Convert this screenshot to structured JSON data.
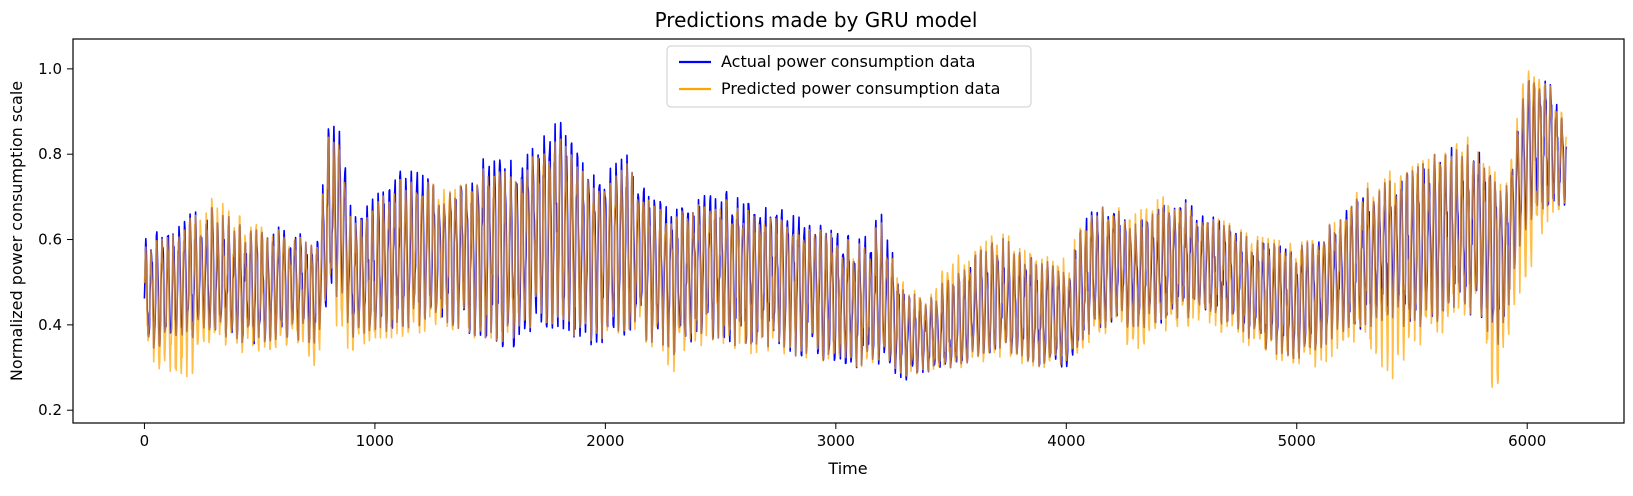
{
  "chart_data": {
    "type": "line",
    "title": "Predictions made by GRU model",
    "xlabel": "Time",
    "ylabel": "Normalized power consumption scale",
    "xlim": [
      -310,
      6420
    ],
    "ylim": [
      0.17,
      1.07
    ],
    "xticks": [
      0,
      1000,
      2000,
      3000,
      4000,
      5000,
      6000
    ],
    "yticks": [
      0.2,
      0.4,
      0.6,
      0.8,
      1.0
    ],
    "xtick_labels": [
      "0",
      "1000",
      "2000",
      "3000",
      "4000",
      "5000",
      "6000"
    ],
    "ytick_labels": [
      "0.2",
      "0.4",
      "0.6",
      "0.8",
      "1.0"
    ],
    "grid": false,
    "legend_position": "upper center",
    "legend": [
      {
        "label": "Actual power consumption data",
        "color": "#0000ff"
      },
      {
        "label": "Predicted power consumption data",
        "color": "#ffa500"
      }
    ],
    "num_points": 6170,
    "series": [
      {
        "name": "Actual power consumption data",
        "color": "#0000ff",
        "x": [
          0,
          150,
          300,
          450,
          600,
          750,
          800,
          850,
          900,
          1000,
          1100,
          1200,
          1300,
          1400,
          1500,
          1600,
          1700,
          1800,
          1900,
          2000,
          2100,
          2200,
          2300,
          2400,
          2500,
          2600,
          2700,
          2800,
          2900,
          3000,
          3100,
          3200,
          3300,
          3400,
          3500,
          3600,
          3700,
          3800,
          3900,
          4000,
          4100,
          4200,
          4300,
          4400,
          4500,
          4600,
          4700,
          4800,
          4900,
          5000,
          5100,
          5200,
          5300,
          5400,
          5500,
          5600,
          5700,
          5800,
          5850,
          5900,
          6000,
          6100,
          6170
        ],
        "y": [
          0.45,
          0.49,
          0.51,
          0.47,
          0.49,
          0.5,
          0.66,
          0.62,
          0.5,
          0.52,
          0.55,
          0.57,
          0.56,
          0.58,
          0.6,
          0.57,
          0.62,
          0.64,
          0.58,
          0.57,
          0.61,
          0.54,
          0.52,
          0.54,
          0.56,
          0.53,
          0.52,
          0.51,
          0.49,
          0.47,
          0.45,
          0.44,
          0.38,
          0.36,
          0.38,
          0.42,
          0.45,
          0.43,
          0.41,
          0.4,
          0.5,
          0.54,
          0.51,
          0.53,
          0.55,
          0.54,
          0.52,
          0.49,
          0.46,
          0.45,
          0.47,
          0.52,
          0.55,
          0.58,
          0.56,
          0.6,
          0.63,
          0.62,
          0.6,
          0.58,
          0.82,
          0.84,
          0.8
        ],
        "ymin": [
          0.33,
          0.36,
          0.38,
          0.35,
          0.37,
          0.35,
          0.46,
          0.47,
          0.37,
          0.39,
          0.38,
          0.4,
          0.41,
          0.38,
          0.36,
          0.34,
          0.4,
          0.39,
          0.35,
          0.36,
          0.38,
          0.36,
          0.33,
          0.36,
          0.37,
          0.34,
          0.35,
          0.33,
          0.32,
          0.3,
          0.3,
          0.31,
          0.27,
          0.29,
          0.3,
          0.31,
          0.33,
          0.32,
          0.3,
          0.3,
          0.38,
          0.4,
          0.39,
          0.4,
          0.42,
          0.41,
          0.4,
          0.36,
          0.33,
          0.32,
          0.34,
          0.38,
          0.39,
          0.42,
          0.38,
          0.4,
          0.44,
          0.4,
          0.35,
          0.36,
          0.64,
          0.68,
          0.68
        ],
        "ymax": [
          0.6,
          0.65,
          0.68,
          0.62,
          0.63,
          0.6,
          0.87,
          0.9,
          0.65,
          0.7,
          0.76,
          0.76,
          0.7,
          0.74,
          0.81,
          0.79,
          0.83,
          0.88,
          0.78,
          0.76,
          0.8,
          0.7,
          0.67,
          0.7,
          0.72,
          0.69,
          0.68,
          0.67,
          0.64,
          0.62,
          0.6,
          0.66,
          0.48,
          0.46,
          0.52,
          0.56,
          0.61,
          0.58,
          0.55,
          0.54,
          0.67,
          0.68,
          0.65,
          0.68,
          0.7,
          0.66,
          0.64,
          0.6,
          0.59,
          0.58,
          0.61,
          0.67,
          0.72,
          0.74,
          0.76,
          0.8,
          0.83,
          0.81,
          0.76,
          0.7,
          0.98,
          0.97,
          0.85
        ]
      },
      {
        "name": "Predicted power consumption data",
        "color": "#ffa500",
        "x": [
          0,
          150,
          300,
          450,
          600,
          750,
          800,
          850,
          900,
          1000,
          1100,
          1200,
          1300,
          1400,
          1500,
          1600,
          1700,
          1800,
          1900,
          2000,
          2100,
          2200,
          2300,
          2400,
          2500,
          2600,
          2700,
          2800,
          2900,
          3000,
          3100,
          3200,
          3300,
          3400,
          3500,
          3600,
          3700,
          3800,
          3900,
          4000,
          4100,
          4200,
          4300,
          4400,
          4500,
          4600,
          4700,
          4800,
          4900,
          5000,
          5100,
          5200,
          5300,
          5400,
          5500,
          5600,
          5700,
          5800,
          5850,
          5900,
          6000,
          6100,
          6170
        ],
        "y": [
          0.45,
          0.49,
          0.51,
          0.47,
          0.49,
          0.5,
          0.66,
          0.62,
          0.5,
          0.52,
          0.55,
          0.57,
          0.56,
          0.58,
          0.6,
          0.57,
          0.62,
          0.64,
          0.58,
          0.57,
          0.61,
          0.54,
          0.52,
          0.54,
          0.56,
          0.53,
          0.52,
          0.51,
          0.49,
          0.47,
          0.45,
          0.44,
          0.38,
          0.36,
          0.38,
          0.42,
          0.45,
          0.43,
          0.41,
          0.4,
          0.5,
          0.54,
          0.51,
          0.53,
          0.55,
          0.54,
          0.52,
          0.49,
          0.46,
          0.45,
          0.47,
          0.52,
          0.55,
          0.58,
          0.56,
          0.6,
          0.63,
          0.62,
          0.6,
          0.58,
          0.82,
          0.84,
          0.8
        ],
        "ymin": [
          0.34,
          0.24,
          0.36,
          0.33,
          0.35,
          0.3,
          0.5,
          0.35,
          0.34,
          0.37,
          0.37,
          0.38,
          0.4,
          0.37,
          0.37,
          0.35,
          0.41,
          0.4,
          0.36,
          0.37,
          0.39,
          0.35,
          0.29,
          0.35,
          0.36,
          0.33,
          0.34,
          0.33,
          0.32,
          0.31,
          0.3,
          0.32,
          0.28,
          0.29,
          0.3,
          0.3,
          0.32,
          0.31,
          0.3,
          0.31,
          0.36,
          0.38,
          0.34,
          0.38,
          0.4,
          0.39,
          0.38,
          0.35,
          0.32,
          0.31,
          0.3,
          0.35,
          0.36,
          0.26,
          0.35,
          0.36,
          0.42,
          0.4,
          0.2,
          0.33,
          0.51,
          0.66,
          0.68
        ],
        "ymax": [
          0.58,
          0.63,
          0.7,
          0.64,
          0.62,
          0.59,
          0.85,
          0.86,
          0.63,
          0.68,
          0.74,
          0.74,
          0.72,
          0.73,
          0.78,
          0.76,
          0.8,
          0.84,
          0.76,
          0.73,
          0.78,
          0.68,
          0.66,
          0.68,
          0.7,
          0.67,
          0.66,
          0.65,
          0.63,
          0.61,
          0.59,
          0.64,
          0.49,
          0.47,
          0.56,
          0.57,
          0.62,
          0.6,
          0.57,
          0.56,
          0.67,
          0.68,
          0.66,
          0.7,
          0.7,
          0.66,
          0.64,
          0.61,
          0.6,
          0.59,
          0.62,
          0.68,
          0.73,
          0.76,
          0.77,
          0.8,
          0.86,
          0.82,
          0.77,
          0.71,
          1.02,
          0.96,
          0.87
        ]
      }
    ]
  }
}
